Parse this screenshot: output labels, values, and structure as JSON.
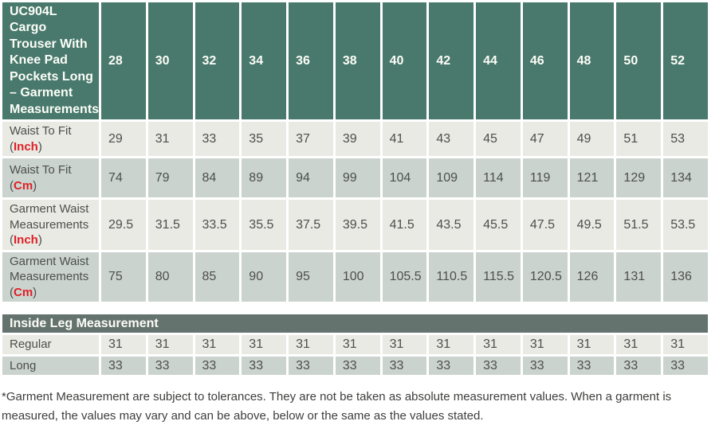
{
  "chart_data": {
    "type": "table",
    "title": "UC904L Cargo Trouser With Knee Pad Pockets Long – Garment Measurements",
    "columns": [
      "28",
      "30",
      "32",
      "34",
      "36",
      "38",
      "40",
      "42",
      "44",
      "46",
      "48",
      "50",
      "52"
    ],
    "rows": [
      {
        "label": "Waist To Fit",
        "unit": "Inch",
        "shade": "light",
        "values": [
          "29",
          "31",
          "33",
          "35",
          "37",
          "39",
          "41",
          "43",
          "45",
          "47",
          "49",
          "51",
          "53"
        ]
      },
      {
        "label": "Waist To Fit",
        "unit": "Cm",
        "shade": "dark",
        "values": [
          "74",
          "79",
          "84",
          "89",
          "94",
          "99",
          "104",
          "109",
          "114",
          "119",
          "121",
          "129",
          "134"
        ]
      },
      {
        "label": "Garment Waist Measurements",
        "unit": "Inch",
        "shade": "light",
        "values": [
          "29.5",
          "31.5",
          "33.5",
          "35.5",
          "37.5",
          "39.5",
          "41.5",
          "43.5",
          "45.5",
          "47.5",
          "49.5",
          "51.5",
          "53.5"
        ]
      },
      {
        "label": "Garment Waist Measurements",
        "unit": "Cm",
        "shade": "dark",
        "values": [
          "75",
          "80",
          "85",
          "90",
          "95",
          "100",
          "105.5",
          "110.5",
          "115.5",
          "120.5",
          "126",
          "131",
          "136"
        ]
      }
    ],
    "section2": {
      "title": "Inside Leg Measurement",
      "rows": [
        {
          "label": "Regular",
          "shade": "light",
          "values": [
            "31",
            "31",
            "31",
            "31",
            "31",
            "31",
            "31",
            "31",
            "31",
            "31",
            "31",
            "31",
            "31"
          ]
        },
        {
          "label": "Long",
          "shade": "dark",
          "values": [
            "33",
            "33",
            "33",
            "33",
            "33",
            "33",
            "33",
            "33",
            "33",
            "33",
            "33",
            "33",
            "33"
          ]
        }
      ]
    },
    "footnote": "*Garment Measurement are subject to tolerances. They are not be taken as absolute measurement values. When a garment is measured, the values may vary and can be above, below or the same as the values stated.",
    "colors": {
      "header_bg": "#48796c",
      "band_bg": "#65736f",
      "row_light": "#e9eae3",
      "row_dark": "#cbd3ce",
      "unit_red": "#df1f26",
      "cell_text": "#4d4f4d",
      "header_text": "#fdfdf8",
      "foot_text": "#3d3e3c"
    }
  }
}
